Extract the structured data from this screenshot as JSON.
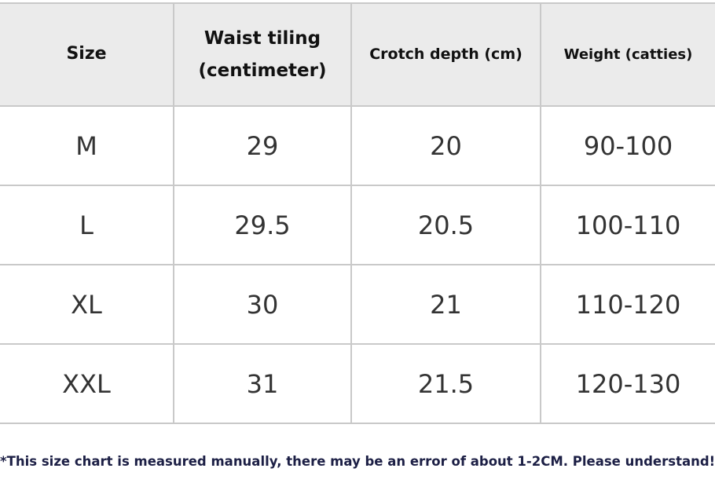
{
  "table": {
    "header": [
      "Size",
      "Waist tiling (centimeter)",
      "Crotch depth (cm)",
      "Weight (catties)"
    ],
    "rows": [
      [
        "M",
        "29",
        "20",
        "90-100"
      ],
      [
        "L",
        "29.5",
        "20.5",
        "100-110"
      ],
      [
        "XL",
        "30",
        "21",
        "110-120"
      ],
      [
        "XXL",
        "31",
        "21.5",
        "120-130"
      ]
    ]
  },
  "note": "*This size chart is measured manually, there may be an error of about 1-2CM. Please understand!"
}
